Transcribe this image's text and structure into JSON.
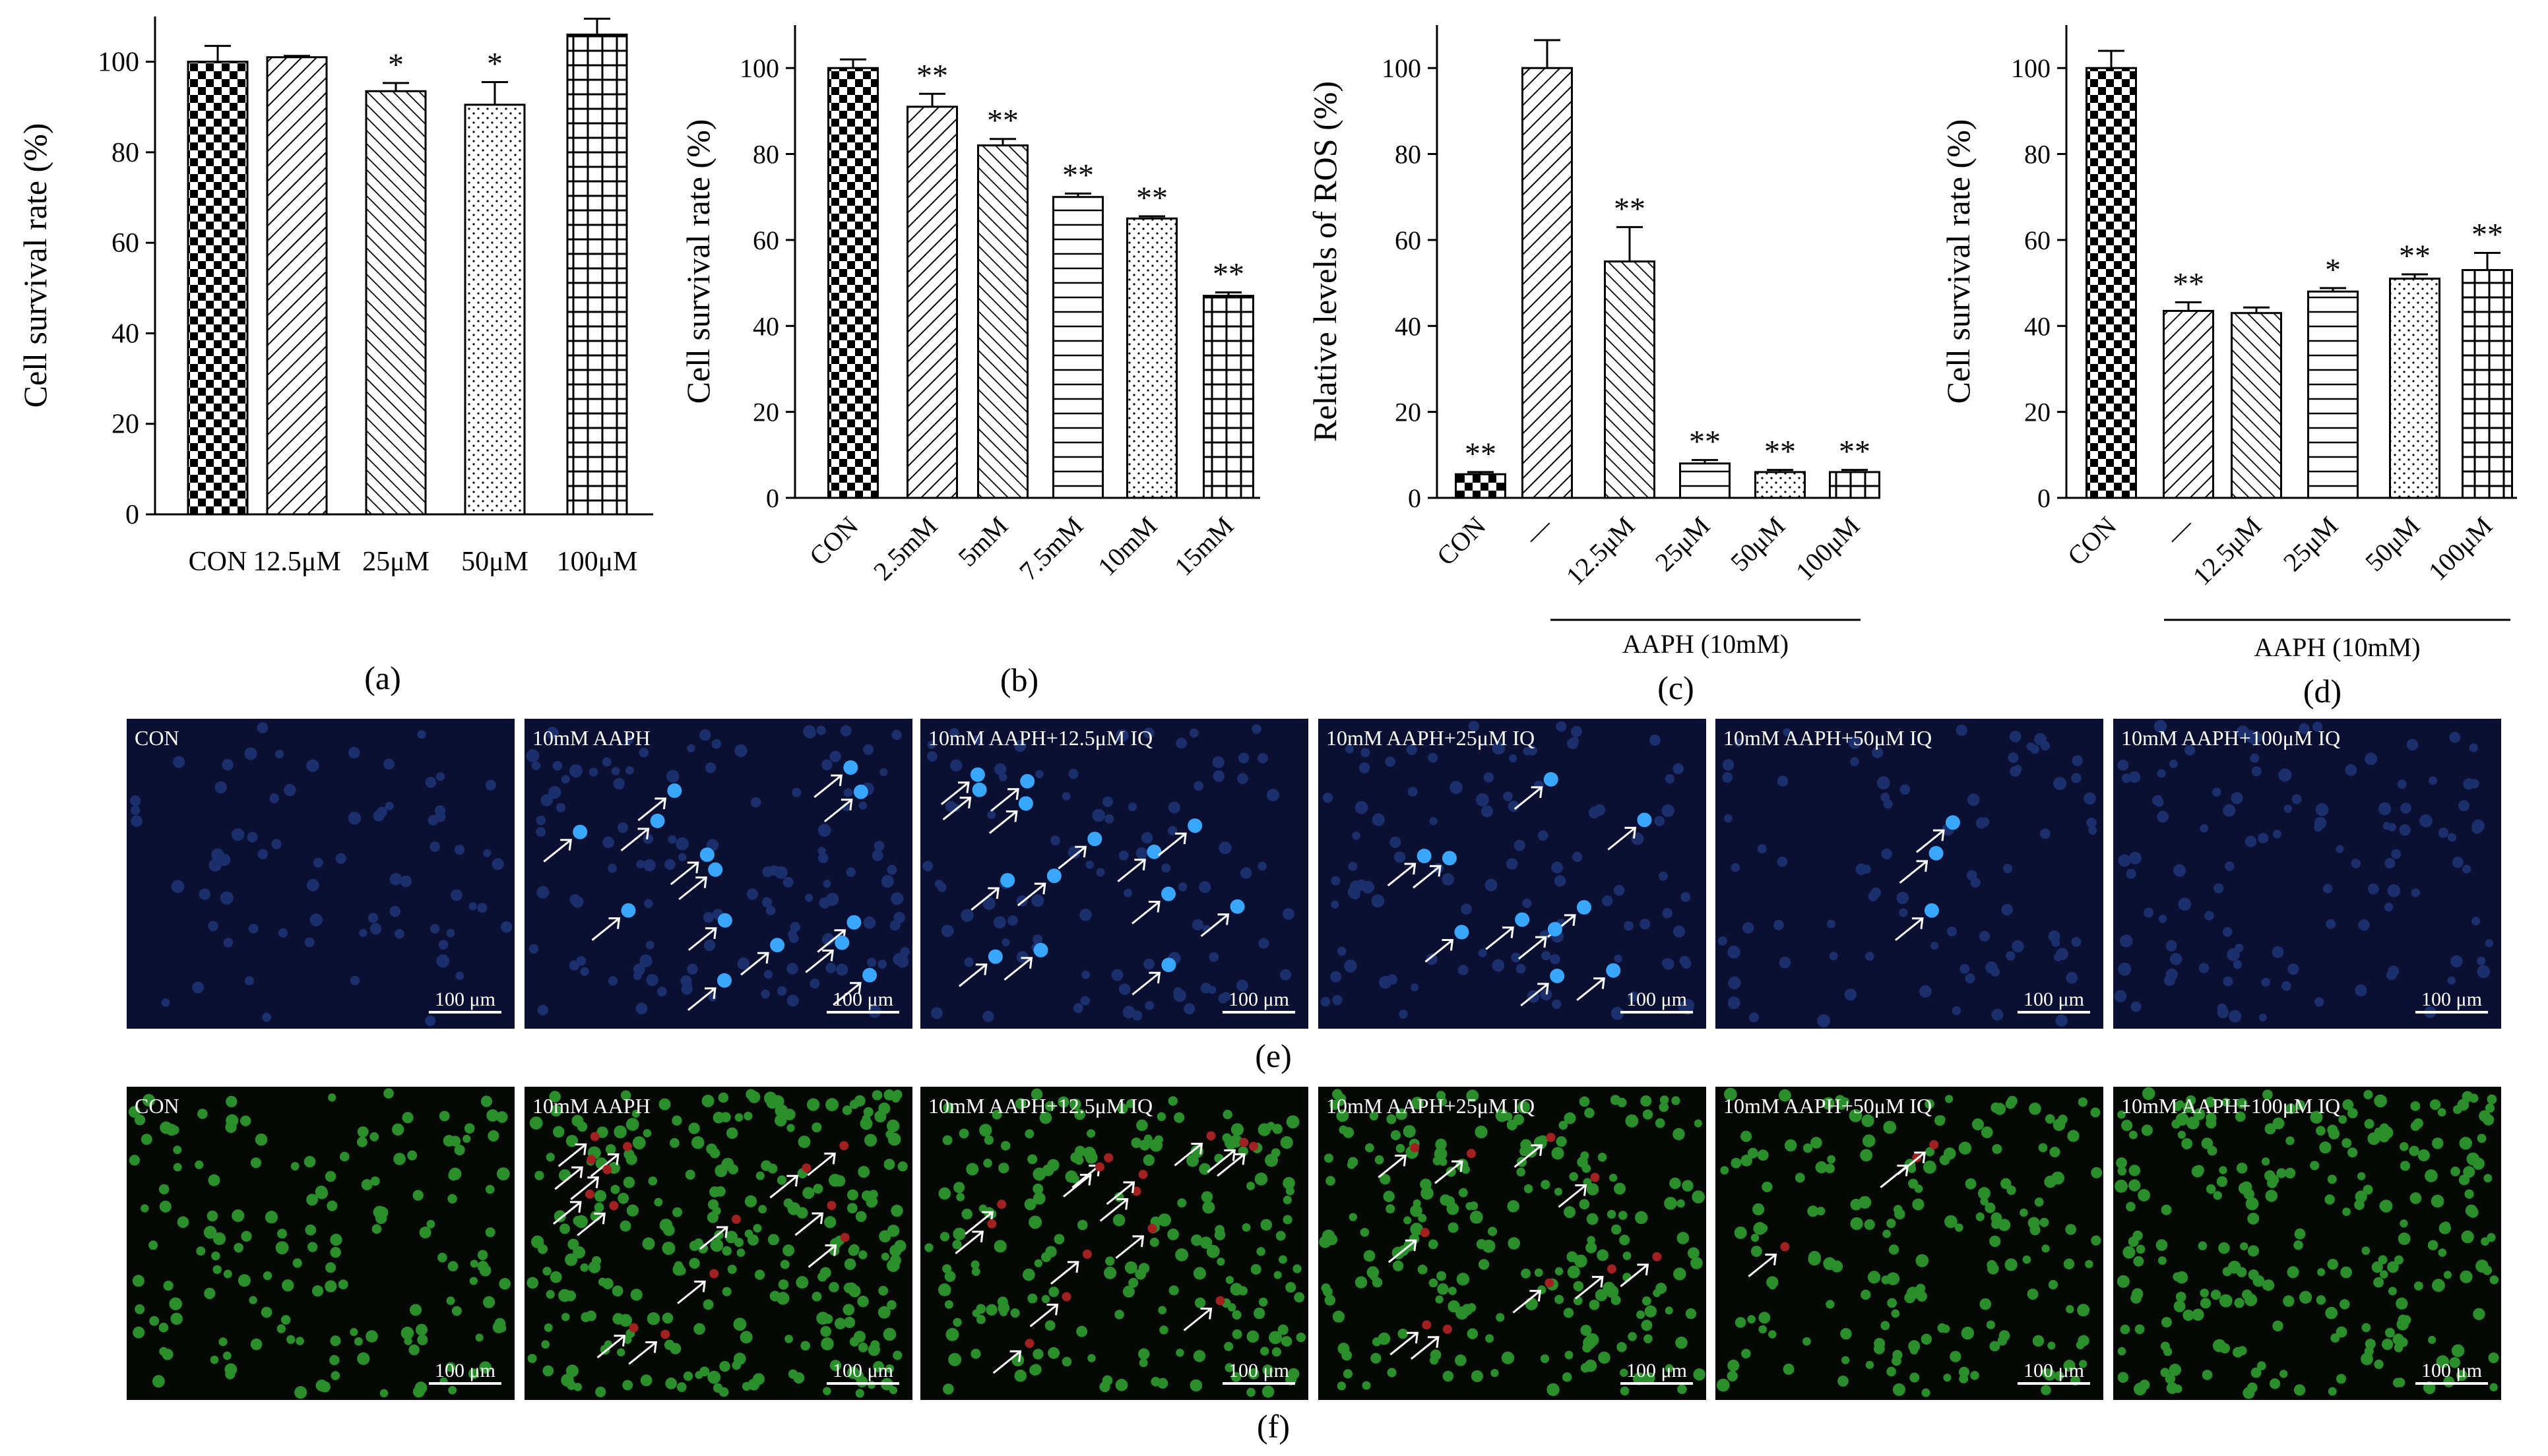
{
  "charts": {
    "a": {
      "type": "bar",
      "panel_label": "(a)",
      "ylabel": "Cell survival rate (%)",
      "ylim": [
        0,
        110
      ],
      "yticks": [
        "0",
        "20",
        "40",
        "60",
        "80",
        "100"
      ],
      "categories": [
        "CON",
        "12.5μM",
        "25μM",
        "50μM",
        "100μM"
      ],
      "values": [
        100,
        101,
        93.5,
        90.5,
        106
      ],
      "errors": [
        3.5,
        0.3,
        1.8,
        5,
        3.5
      ],
      "significance": [
        "",
        "",
        "*",
        "*",
        ""
      ],
      "patterns": [
        "checker",
        "diag-right",
        "diag-left",
        "dots",
        "grid"
      ]
    },
    "b": {
      "type": "bar",
      "panel_label": "(b)",
      "ylabel": "Cell survival rate (%)",
      "ylim": [
        0,
        110
      ],
      "yticks": [
        "0",
        "20",
        "40",
        "60",
        "80",
        "100"
      ],
      "categories": [
        "CON",
        "2.5mM",
        "5mM",
        "7.5mM",
        "10mM",
        "15mM"
      ],
      "values": [
        100,
        91,
        82,
        70,
        65,
        47
      ],
      "errors": [
        2,
        3,
        1.5,
        0.8,
        0.5,
        0.8
      ],
      "significance": [
        "",
        "**",
        "**",
        "**",
        "**",
        "**"
      ],
      "patterns": [
        "checker",
        "diag-right",
        "diag-left",
        "hlines",
        "dots",
        "grid"
      ]
    },
    "c": {
      "type": "bar",
      "panel_label": "(c)",
      "ylabel": "Relative levels of ROS (%)",
      "ylim": [
        0,
        110
      ],
      "yticks": [
        "0",
        "20",
        "40",
        "60",
        "80",
        "100"
      ],
      "categories": [
        "CON",
        "—",
        "12.5μM",
        "25μM",
        "50μM",
        "100μM"
      ],
      "values": [
        5.5,
        100,
        55,
        8,
        6,
        6
      ],
      "errors": [
        0.5,
        6.5,
        8,
        0.8,
        0.5,
        0.5
      ],
      "significance": [
        "**",
        "",
        "**",
        "**",
        "**",
        "**"
      ],
      "patterns": [
        "checker",
        "diag-right",
        "diag-left",
        "hlines",
        "dots",
        "grid"
      ],
      "group_label": "AAPH (10mM)"
    },
    "d": {
      "type": "bar",
      "panel_label": "(d)",
      "ylabel": "Cell survival rate (%)",
      "ylim": [
        0,
        110
      ],
      "yticks": [
        "0",
        "20",
        "40",
        "60",
        "80",
        "100"
      ],
      "categories": [
        "CON",
        "—",
        "12.5μM",
        "25μM",
        "50μM",
        "100μM"
      ],
      "values": [
        100,
        43.5,
        43,
        48,
        51,
        53
      ],
      "errors": [
        4,
        2,
        1.3,
        0.8,
        1,
        4
      ],
      "significance": [
        "",
        "**",
        "",
        "*",
        "**",
        "**"
      ],
      "patterns": [
        "checker",
        "diag-right",
        "diag-left",
        "hlines",
        "dots",
        "grid"
      ],
      "group_label": "AAPH (10mM)"
    }
  },
  "micrograph_rows": {
    "e": {
      "panel_label": "(e)",
      "background": "#0b1033",
      "cell_color": "#2a4a9e",
      "highlight_color": "#39a6ff",
      "scale_bar": "100 μm",
      "panels": [
        "CON",
        "10mM AAPH",
        "10mM AAPH+12.5μM IQ",
        "10mM AAPH+25μM IQ",
        "10mM AAPH+50μM IQ",
        "10mM AAPH+100μM IQ"
      ]
    },
    "f": {
      "panel_label": "(f)",
      "background": "#050805",
      "cell_color": "#2f9e2f",
      "highlight_color": "#a12020",
      "scale_bar": "100 μm",
      "panels": [
        "CON",
        "10mM AAPH",
        "10mM AAPH+12.5μM IQ",
        "10mM AAPH+25μM IQ",
        "10mM AAPH+50μM IQ",
        "10mM AAPH+100μM IQ"
      ]
    }
  }
}
